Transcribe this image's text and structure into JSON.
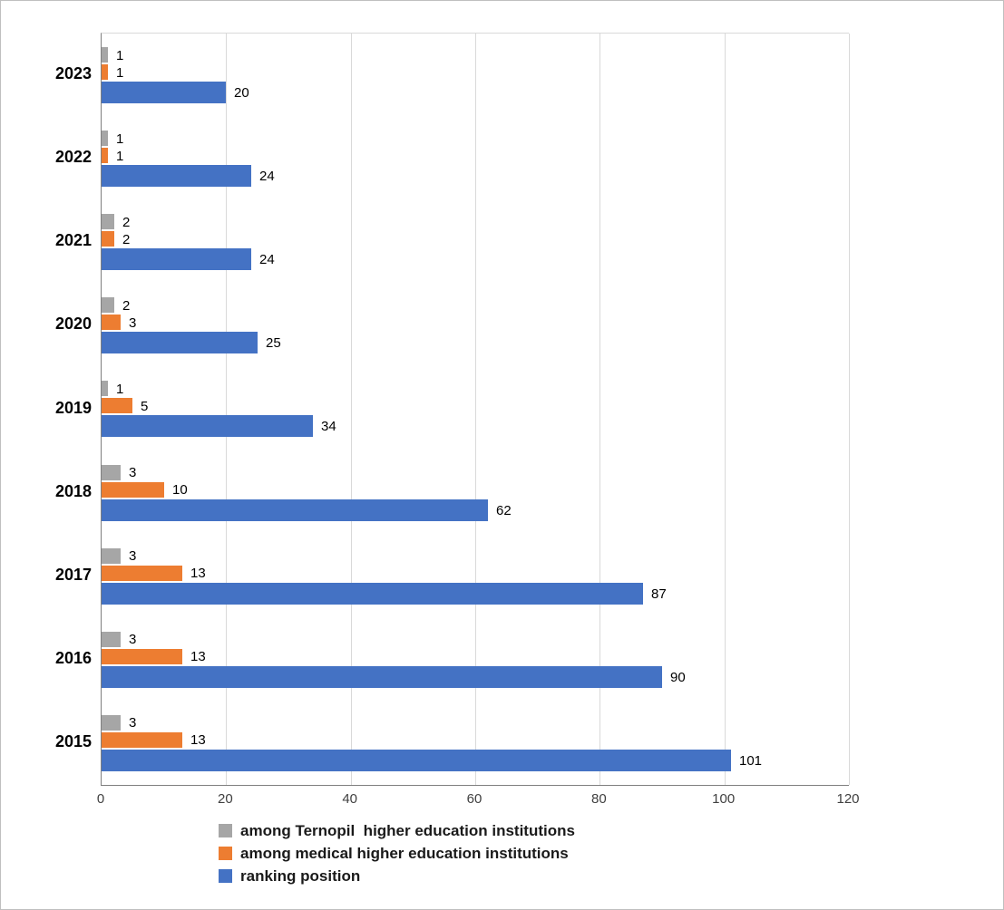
{
  "chart_data": {
    "type": "bar",
    "orientation": "horizontal",
    "title": "",
    "categories": [
      "2023",
      "2022",
      "2021",
      "2020",
      "2019",
      "2018",
      "2017",
      "2016",
      "2015"
    ],
    "series": [
      {
        "name": "among Ternopil  higher education institutions",
        "color": "#a6a6a6",
        "values": [
          1,
          1,
          2,
          2,
          1,
          3,
          3,
          3,
          3
        ]
      },
      {
        "name": "among medical higher education institutions",
        "color": "#ed7d31",
        "values": [
          1,
          1,
          2,
          3,
          5,
          10,
          13,
          13,
          13
        ]
      },
      {
        "name": "ranking position",
        "color": "#4472c4",
        "values": [
          20,
          24,
          24,
          25,
          34,
          62,
          87,
          90,
          101
        ]
      }
    ],
    "x_axis": {
      "min": 0,
      "max": 120,
      "tick_interval": 20,
      "ticks": [
        0,
        20,
        40,
        60,
        80,
        100,
        120
      ]
    },
    "grid": true,
    "legend_position": "bottom",
    "data_labels": true
  }
}
